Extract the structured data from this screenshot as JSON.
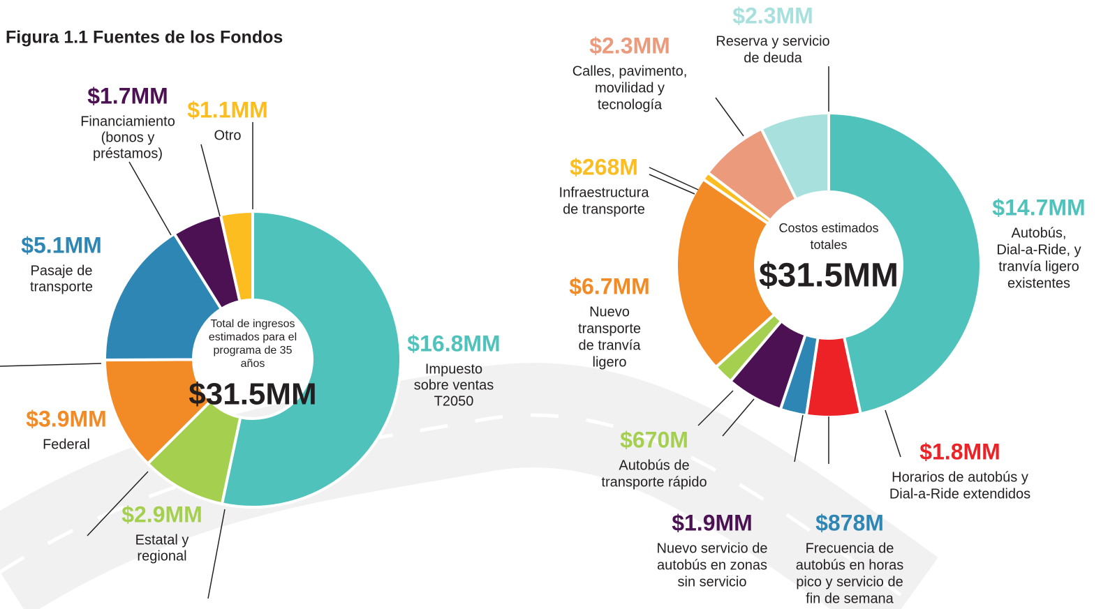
{
  "chart_data": [
    {
      "type": "pie",
      "title": "Figura 1.1 Fuentes de los Fondos",
      "center_text": [
        "Total de ingresos",
        "estimados para el",
        "programa de 35",
        "años"
      ],
      "center_value": "$31.5MM",
      "values": [
        16.8,
        2.9,
        3.9,
        5.1,
        1.7,
        1.1
      ],
      "value_labels": [
        "$16.8MM",
        "$2.9MM",
        "$3.9MM",
        "$5.1MM",
        "$1.7MM",
        "$1.1MM"
      ],
      "labels": [
        [
          "Impuesto",
          "sobre ventas",
          "T2050"
        ],
        [
          "Estatal y",
          "regional"
        ],
        [
          "Federal"
        ],
        [
          "Pasaje de",
          "transporte"
        ],
        [
          "Financiamiento",
          "(bonos y",
          "préstamos)"
        ],
        [
          "Otro"
        ]
      ],
      "colors": [
        "#4ec2bb",
        "#a5cf4f",
        "#f28a25",
        "#2e86b5",
        "#4b1152",
        "#fbbd1f"
      ]
    },
    {
      "type": "pie",
      "center_text": [
        "Costos estimados",
        "totales"
      ],
      "center_value": "$31.5MM",
      "values": [
        14.7,
        1.8,
        0.878,
        1.9,
        0.67,
        6.7,
        0.268,
        2.3,
        2.3
      ],
      "value_labels": [
        "$14.7MM",
        "$1.8MM",
        "$878M",
        "$1.9MM",
        "$670M",
        "$6.7MM",
        "$268M",
        "$2.3MM",
        "$2.3MM"
      ],
      "labels": [
        [
          "Autobús,",
          "Dial-a-Ride, y",
          "tranvía ligero",
          "existentes"
        ],
        [
          "Horarios de autobús y",
          "Dial-a-Ride extendidos"
        ],
        [
          "Frecuencia de",
          "autobús en horas",
          "pico y servicio de",
          "fin de semana"
        ],
        [
          "Nuevo servicio de",
          "autobús en zonas",
          "sin servicio"
        ],
        [
          "Autobús de",
          "transporte rápido"
        ],
        [
          "Nuevo",
          "transporte",
          "de tranvía",
          "ligero"
        ],
        [
          "Infraestructura",
          "de transporte"
        ],
        [
          "Calles, pavimento,",
          "movilidad y",
          "tecnología"
        ],
        [
          "Reserva y servicio",
          "de deuda"
        ]
      ],
      "colors": [
        "#4ec2bb",
        "#ec2227",
        "#2e86b5",
        "#4b1152",
        "#a5cf4f",
        "#f28a25",
        "#fbbd1f",
        "#ec9a7c",
        "#a8e0de"
      ]
    }
  ]
}
